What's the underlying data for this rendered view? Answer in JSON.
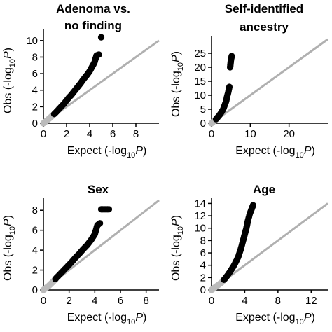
{
  "chart_data": [
    {
      "type": "scatter",
      "title_lines": [
        "Adenoma vs.",
        "no finding"
      ],
      "xlabel": "Expect (-log10P)",
      "ylabel": "Obs (-log10P)",
      "xlim": [
        0,
        10
      ],
      "ylim": [
        0,
        11
      ],
      "xticks": [
        0,
        2,
        4,
        6,
        8
      ],
      "yticks": [
        0,
        2,
        4,
        6,
        8,
        10
      ],
      "reference_line": "y = x",
      "null_color": "#bbbbbb",
      "sig_color": "#000000",
      "expected_null_cutoff": 0.9,
      "points": [
        [
          0.0,
          0.0
        ],
        [
          0.2,
          0.22
        ],
        [
          0.4,
          0.45
        ],
        [
          0.6,
          0.7
        ],
        [
          0.8,
          0.95
        ],
        [
          1.0,
          1.2
        ],
        [
          1.2,
          1.5
        ],
        [
          1.4,
          1.8
        ],
        [
          1.6,
          2.1
        ],
        [
          1.8,
          2.4
        ],
        [
          2.0,
          2.75
        ],
        [
          2.2,
          3.1
        ],
        [
          2.4,
          3.4
        ],
        [
          2.6,
          3.75
        ],
        [
          2.8,
          4.1
        ],
        [
          3.0,
          4.45
        ],
        [
          3.2,
          4.8
        ],
        [
          3.4,
          5.2
        ],
        [
          3.6,
          5.55
        ],
        [
          3.8,
          5.9
        ],
        [
          4.0,
          6.3
        ],
        [
          4.2,
          6.8
        ],
        [
          4.4,
          7.3
        ],
        [
          4.6,
          8.2
        ],
        [
          4.8,
          8.3
        ],
        [
          5.0,
          10.4
        ]
      ]
    },
    {
      "type": "scatter",
      "title_lines": [
        "Self-identified",
        "ancestry"
      ],
      "xlabel": "Expect (-log10P)",
      "ylabel": "Obs (-log10P)",
      "xlim": [
        0,
        30
      ],
      "ylim": [
        0,
        30
      ],
      "xticks": [
        0,
        10,
        20
      ],
      "yticks": [
        0,
        5,
        10,
        15,
        20,
        25
      ],
      "reference_line": "y = x",
      "null_color": "#bbbbbb",
      "sig_color": "#000000",
      "expected_null_cutoff": 1.0,
      "points": [
        [
          0.0,
          0.0
        ],
        [
          0.5,
          0.6
        ],
        [
          1.0,
          1.2
        ],
        [
          1.5,
          2.0
        ],
        [
          2.0,
          2.8
        ],
        [
          2.5,
          3.8
        ],
        [
          3.0,
          5.0
        ],
        [
          3.4,
          6.5
        ],
        [
          3.8,
          8.0
        ],
        [
          4.0,
          9.5
        ],
        [
          4.3,
          11.0
        ],
        [
          4.6,
          13.0
        ],
        [
          4.8,
          20.0
        ],
        [
          5.0,
          22.5
        ],
        [
          5.2,
          24.0
        ]
      ]
    },
    {
      "type": "scatter",
      "title_lines": [
        "Sex"
      ],
      "xlabel": "Expect (-log10P)",
      "ylabel": "Obs (-log10P)",
      "xlim": [
        0,
        9
      ],
      "ylim": [
        0,
        9
      ],
      "xticks": [
        0,
        2,
        4,
        6,
        8
      ],
      "yticks": [
        0,
        2,
        4,
        6,
        8
      ],
      "reference_line": "y = x",
      "null_color": "#bbbbbb",
      "sig_color": "#000000",
      "expected_null_cutoff": 0.9,
      "points": [
        [
          0.0,
          0.0
        ],
        [
          0.2,
          0.2
        ],
        [
          0.4,
          0.4
        ],
        [
          0.6,
          0.65
        ],
        [
          0.8,
          0.9
        ],
        [
          1.0,
          1.2
        ],
        [
          1.3,
          1.6
        ],
        [
          1.6,
          2.0
        ],
        [
          1.9,
          2.4
        ],
        [
          2.2,
          2.8
        ],
        [
          2.5,
          3.25
        ],
        [
          2.8,
          3.65
        ],
        [
          3.1,
          4.1
        ],
        [
          3.4,
          4.5
        ],
        [
          3.7,
          5.0
        ],
        [
          4.0,
          5.6
        ],
        [
          4.2,
          6.5
        ],
        [
          4.4,
          6.7
        ],
        [
          4.5,
          8.1
        ],
        [
          4.8,
          8.1
        ],
        [
          5.1,
          8.1
        ]
      ]
    },
    {
      "type": "scatter",
      "title_lines": [
        "Age"
      ],
      "xlabel": "Expect (-log10P)",
      "ylabel": "Obs (-log10P)",
      "xlim": [
        0,
        14
      ],
      "ylim": [
        0,
        14.5
      ],
      "xticks": [
        0,
        4,
        8,
        12
      ],
      "yticks": [
        0,
        2,
        4,
        6,
        8,
        10,
        12,
        14
      ],
      "reference_line": "y = x",
      "null_color": "#bbbbbb",
      "sig_color": "#000000",
      "expected_null_cutoff": 1.4,
      "points": [
        [
          0.0,
          0.0
        ],
        [
          0.4,
          0.4
        ],
        [
          0.8,
          0.8
        ],
        [
          1.2,
          1.2
        ],
        [
          1.6,
          1.8
        ],
        [
          2.0,
          2.5
        ],
        [
          2.4,
          3.3
        ],
        [
          2.8,
          4.2
        ],
        [
          3.2,
          5.3
        ],
        [
          3.5,
          6.5
        ],
        [
          3.8,
          8.0
        ],
        [
          4.0,
          9.0
        ],
        [
          4.2,
          10.0
        ],
        [
          4.4,
          11.3
        ],
        [
          4.6,
          12.3
        ],
        [
          4.8,
          13.0
        ],
        [
          5.0,
          13.7
        ]
      ]
    }
  ]
}
